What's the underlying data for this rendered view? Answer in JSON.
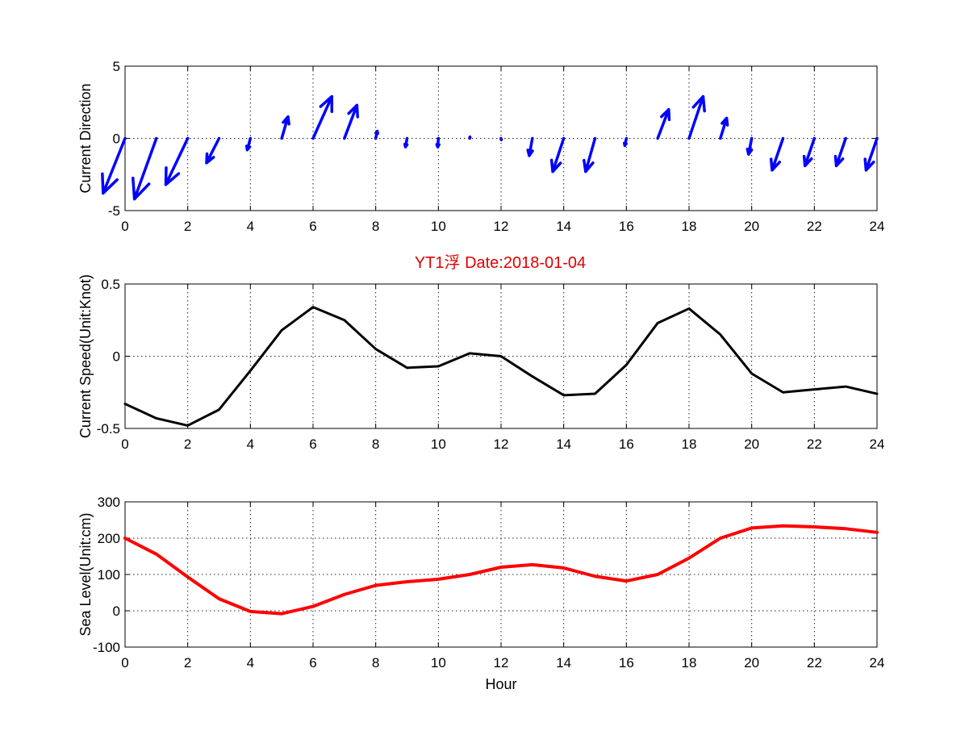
{
  "colors": {
    "direction": "#0000ff",
    "speed": "#000000",
    "sea_level": "#ff0000",
    "title": "#e00000"
  },
  "title": "YT1浮    Date:2018-01-04",
  "chart_data": [
    {
      "type": "quiver",
      "xlabel": "",
      "ylabel": "Current Direction",
      "xlim": [
        0,
        24
      ],
      "ylim": [
        -5,
        5
      ],
      "xticks": [
        "0",
        "2",
        "4",
        "6",
        "8",
        "10",
        "12",
        "14",
        "16",
        "18",
        "20",
        "22",
        "24"
      ],
      "yticks": [
        "-5",
        "0",
        "5"
      ],
      "grid": true,
      "x": [
        0,
        1,
        2,
        3,
        4,
        5,
        6,
        7,
        8,
        9,
        10,
        11,
        12,
        13,
        14,
        15,
        16,
        17,
        18,
        19,
        20,
        21,
        22,
        23,
        24
      ],
      "u": [
        -0.7,
        -0.7,
        -0.7,
        -0.4,
        -0.1,
        0.2,
        0.6,
        0.4,
        0.05,
        -0.05,
        -0.02,
        0.01,
        0.01,
        -0.1,
        -0.35,
        -0.3,
        -0.05,
        0.35,
        0.45,
        0.2,
        -0.1,
        -0.35,
        -0.3,
        -0.3,
        -0.35
      ],
      "v": [
        -3.8,
        -4.2,
        -3.2,
        -1.7,
        -0.8,
        1.5,
        2.9,
        2.3,
        0.5,
        -0.6,
        -0.6,
        0.1,
        -0.1,
        -1.2,
        -2.3,
        -2.3,
        -0.5,
        2.0,
        2.9,
        1.4,
        -1.1,
        -2.2,
        -1.9,
        -1.9,
        -2.2
      ]
    },
    {
      "type": "line",
      "xlabel": "",
      "ylabel": "Current Speed(Unit:Knot)",
      "xlim": [
        0,
        24
      ],
      "ylim": [
        -0.5,
        0.5
      ],
      "xticks": [
        "0",
        "2",
        "4",
        "6",
        "8",
        "10",
        "12",
        "14",
        "16",
        "18",
        "20",
        "22",
        "24"
      ],
      "yticks": [
        "-0.5",
        "0",
        "0.5"
      ],
      "grid": true,
      "x": [
        0,
        1,
        2,
        3,
        4,
        5,
        6,
        7,
        8,
        9,
        10,
        11,
        12,
        13,
        14,
        15,
        16,
        17,
        18,
        19,
        20,
        21,
        22,
        23,
        24
      ],
      "y": [
        -0.33,
        -0.43,
        -0.48,
        -0.37,
        -0.1,
        0.18,
        0.34,
        0.25,
        0.05,
        -0.08,
        -0.07,
        0.02,
        0.0,
        -0.14,
        -0.27,
        -0.26,
        -0.06,
        0.23,
        0.33,
        0.15,
        -0.12,
        -0.25,
        -0.23,
        -0.21,
        -0.26
      ]
    },
    {
      "type": "line",
      "xlabel": "Hour",
      "ylabel": "Sea Level(Unit:cm)",
      "xlim": [
        0,
        24
      ],
      "ylim": [
        -100,
        300
      ],
      "xticks": [
        "0",
        "2",
        "4",
        "6",
        "8",
        "10",
        "12",
        "14",
        "16",
        "18",
        "20",
        "22",
        "24"
      ],
      "yticks": [
        "-100",
        "0",
        "100",
        "200",
        "300"
      ],
      "grid": true,
      "x": [
        0,
        1,
        2,
        3,
        4,
        5,
        6,
        7,
        8,
        9,
        10,
        11,
        12,
        13,
        14,
        15,
        16,
        17,
        18,
        19,
        20,
        21,
        22,
        23,
        24
      ],
      "y": [
        200,
        156,
        93,
        33,
        -2,
        -8,
        12,
        45,
        70,
        80,
        87,
        100,
        120,
        127,
        118,
        95,
        82,
        100,
        145,
        200,
        228,
        234,
        231,
        226,
        216
      ]
    }
  ]
}
